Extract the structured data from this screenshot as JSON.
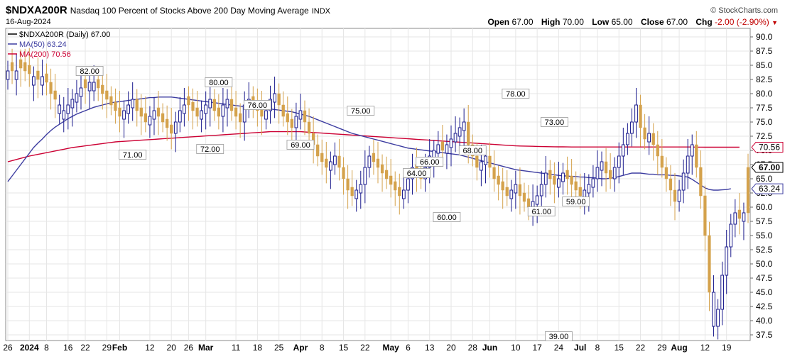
{
  "header": {
    "symbol": "$NDXA200R",
    "description": "Nasdaq 100 Percent of Stocks Above 200 Day Moving Average",
    "exchange": "INDX",
    "date": "16-Aug-2024",
    "source": "© StockCharts.com",
    "open_label": "Open",
    "open": "67.00",
    "high_label": "High",
    "high": "70.00",
    "low_label": "Low",
    "low": "65.00",
    "close_label": "Close",
    "close": "67.00",
    "chg_label": "Chg",
    "chg": "-2.00 (-2.90%)"
  },
  "legend": {
    "price": "$NDXA200R (Daily) 67.00",
    "ma50": "MA(50) 63.24",
    "ma200": "MA(200) 70.56"
  },
  "colors": {
    "up": "#1a1a8c",
    "down": "#d4a24c",
    "ma50": "#3c3ca0",
    "ma200": "#cc0033",
    "grid": "#e6e6e6"
  },
  "chart_data": {
    "type": "candlestick",
    "ylim": [
      36.5,
      91.5
    ],
    "yticks": [
      "90.0",
      "87.5",
      "85.0",
      "82.5",
      "80.0",
      "77.5",
      "75.0",
      "72.5",
      "70.0",
      "67.5",
      "65.0",
      "62.5",
      "60.0",
      "57.5",
      "55.0",
      "52.5",
      "50.0",
      "47.5",
      "45.0",
      "42.5",
      "40.0",
      "37.5"
    ],
    "x_ticks": [
      {
        "label": "26",
        "i": 0
      },
      {
        "label": "2024",
        "i": 5,
        "bold": true
      },
      {
        "label": "8",
        "i": 9
      },
      {
        "label": "16",
        "i": 14
      },
      {
        "label": "22",
        "i": 18
      },
      {
        "label": "29",
        "i": 23
      },
      {
        "label": "Feb",
        "i": 26,
        "bold": true
      },
      {
        "label": "12",
        "i": 33
      },
      {
        "label": "20",
        "i": 38
      },
      {
        "label": "26",
        "i": 42
      },
      {
        "label": "Mar",
        "i": 46,
        "bold": true
      },
      {
        "label": "11",
        "i": 53
      },
      {
        "label": "18",
        "i": 58
      },
      {
        "label": "25",
        "i": 63
      },
      {
        "label": "Apr",
        "i": 68,
        "bold": true
      },
      {
        "label": "8",
        "i": 73
      },
      {
        "label": "15",
        "i": 78
      },
      {
        "label": "22",
        "i": 83
      },
      {
        "label": "May",
        "i": 89,
        "bold": true
      },
      {
        "label": "6",
        "i": 93
      },
      {
        "label": "13",
        "i": 98
      },
      {
        "label": "20",
        "i": 103
      },
      {
        "label": "28",
        "i": 108
      },
      {
        "label": "Jun",
        "i": 112,
        "bold": true
      },
      {
        "label": "10",
        "i": 118
      },
      {
        "label": "17",
        "i": 123
      },
      {
        "label": "24",
        "i": 128
      },
      {
        "label": "Jul",
        "i": 133,
        "bold": true
      },
      {
        "label": "8",
        "i": 137
      },
      {
        "label": "15",
        "i": 142
      },
      {
        "label": "22",
        "i": 147
      },
      {
        "label": "29",
        "i": 152
      },
      {
        "label": "Aug",
        "i": 156,
        "bold": true
      },
      {
        "label": "12",
        "i": 162
      },
      {
        "label": "19",
        "i": 167
      }
    ],
    "candles_close": [
      84,
      84,
      84,
      84.5,
      84,
      83.5,
      83,
      82.5,
      83,
      82,
      80,
      79,
      78,
      77,
      78,
      79,
      80,
      81,
      81,
      82,
      82,
      81,
      80,
      79,
      78,
      77,
      76,
      77,
      78,
      79,
      77,
      76,
      75,
      76,
      77,
      76,
      75,
      74,
      73,
      75,
      77,
      78,
      78,
      77,
      76,
      77,
      78,
      79,
      77,
      76,
      78,
      79,
      77,
      76,
      75,
      78,
      79,
      78,
      77,
      76,
      77,
      79,
      80,
      78,
      76,
      75,
      74,
      76,
      77,
      75,
      73,
      71,
      69,
      68,
      67,
      68,
      69,
      67,
      65,
      63,
      62,
      63,
      64,
      67,
      69,
      68,
      67,
      66,
      65,
      64,
      63,
      62,
      63,
      65,
      67,
      66,
      65,
      67,
      69,
      70,
      71,
      70,
      71,
      72,
      73,
      74,
      75,
      71,
      69,
      67,
      68,
      69,
      67,
      65,
      64,
      63,
      62,
      63,
      64,
      62,
      61,
      60,
      61,
      62,
      64,
      66,
      65,
      64,
      65,
      66,
      65,
      64,
      63,
      62,
      63,
      64,
      65,
      67,
      68,
      66,
      65,
      67,
      69,
      71,
      73,
      75,
      78,
      74,
      72,
      73,
      71,
      69,
      67,
      65,
      63,
      61,
      63,
      66,
      69,
      71,
      67,
      62,
      55,
      45,
      39,
      42,
      48,
      53,
      57,
      59,
      58,
      59,
      67
    ],
    "candles_dir": [
      1,
      0,
      1,
      0,
      0,
      0,
      1,
      0,
      1,
      0,
      0,
      0,
      1,
      1,
      1,
      1,
      1,
      1,
      0,
      1,
      1,
      0,
      0,
      0,
      0,
      0,
      0,
      1,
      1,
      1,
      0,
      0,
      0,
      1,
      1,
      0,
      0,
      0,
      0,
      1,
      1,
      1,
      0,
      0,
      0,
      1,
      1,
      1,
      0,
      0,
      1,
      1,
      0,
      0,
      0,
      1,
      1,
      0,
      0,
      0,
      1,
      1,
      1,
      0,
      0,
      0,
      0,
      1,
      1,
      0,
      0,
      0,
      0,
      0,
      0,
      1,
      1,
      0,
      0,
      0,
      0,
      1,
      1,
      1,
      1,
      0,
      0,
      0,
      0,
      0,
      0,
      0,
      1,
      1,
      1,
      0,
      0,
      1,
      1,
      1,
      1,
      0,
      1,
      1,
      1,
      1,
      1,
      0,
      0,
      0,
      1,
      1,
      0,
      0,
      0,
      0,
      0,
      1,
      1,
      0,
      0,
      0,
      1,
      1,
      1,
      1,
      0,
      0,
      1,
      1,
      0,
      0,
      0,
      0,
      1,
      1,
      1,
      1,
      1,
      0,
      0,
      1,
      1,
      1,
      1,
      1,
      1,
      0,
      0,
      1,
      0,
      0,
      0,
      0,
      0,
      0,
      1,
      1,
      1,
      1,
      0,
      0,
      0,
      0,
      1,
      1,
      1,
      1,
      1,
      1,
      0,
      1,
      0
    ],
    "ma50": [
      64.5,
      65.5,
      66.5,
      67.5,
      68.5,
      69.5,
      70.5,
      71.3,
      72.0,
      72.8,
      73.5,
      74.1,
      74.6,
      75.1,
      75.6,
      76.0,
      76.4,
      76.7,
      77.0,
      77.3,
      77.6,
      77.8,
      78.0,
      78.2,
      78.4,
      78.5,
      78.6,
      78.7,
      78.8,
      78.9,
      79.0,
      79.1,
      79.2,
      79.3,
      79.3,
      79.4,
      79.4,
      79.4,
      79.4,
      79.3,
      79.2,
      79.1,
      79.0,
      78.9,
      78.8,
      78.7,
      78.6,
      78.5,
      78.4,
      78.3,
      78.2,
      78.1,
      78.0,
      77.9,
      77.8,
      77.7,
      77.6,
      77.5,
      77.5,
      77.4,
      77.4,
      77.3,
      77.2,
      77.1,
      77.0,
      76.9,
      76.8,
      76.6,
      76.4,
      76.2,
      76.0,
      75.7,
      75.4,
      75.1,
      74.8,
      74.5,
      74.2,
      73.9,
      73.6,
      73.3,
      73.0,
      72.8,
      72.6,
      72.4,
      72.2,
      72.0,
      71.8,
      71.6,
      71.4,
      71.2,
      71.0,
      70.8,
      70.6,
      70.4,
      70.3,
      70.2,
      70.1,
      70.0,
      69.9,
      69.8,
      69.7,
      69.6,
      69.5,
      69.4,
      69.3,
      69.2,
      69.0,
      68.8,
      68.6,
      68.4,
      68.2,
      68.0,
      67.8,
      67.6,
      67.4,
      67.2,
      67.0,
      66.8,
      66.6,
      66.5,
      66.4,
      66.3,
      66.2,
      66.1,
      66.0,
      65.9,
      65.8,
      65.7,
      65.6,
      65.5,
      65.5,
      65.4,
      65.4,
      65.3,
      65.3,
      65.2,
      65.2,
      65.1,
      65.0,
      65.0,
      65.1,
      65.2,
      65.4,
      65.6,
      65.8,
      66.0,
      66.0,
      66.0,
      65.9,
      65.8,
      65.8,
      65.7,
      65.7,
      65.7,
      65.6,
      65.6,
      65.5,
      65.4,
      65.3,
      64.9,
      64.4,
      63.9,
      63.4,
      63.1,
      63.0,
      63.0,
      63.05,
      63.1,
      63.24
    ],
    "ma200": [
      68.0,
      68.2,
      68.4,
      68.6,
      68.8,
      69.0,
      69.15,
      69.3,
      69.45,
      69.6,
      69.75,
      69.9,
      70.05,
      70.2,
      70.35,
      70.5,
      70.6,
      70.7,
      70.8,
      70.9,
      71.0,
      71.1,
      71.2,
      71.3,
      71.4,
      71.5,
      71.55,
      71.6,
      71.65,
      71.7,
      71.75,
      71.8,
      71.85,
      71.9,
      71.95,
      72.0,
      72.05,
      72.1,
      72.15,
      72.2,
      72.25,
      72.3,
      72.35,
      72.4,
      72.45,
      72.5,
      72.55,
      72.6,
      72.65,
      72.7,
      72.75,
      72.8,
      72.85,
      72.9,
      72.95,
      73.0,
      73.05,
      73.1,
      73.15,
      73.2,
      73.25,
      73.3,
      73.3,
      73.3,
      73.3,
      73.3,
      73.3,
      73.3,
      73.3,
      73.25,
      73.2,
      73.15,
      73.1,
      73.05,
      73.0,
      72.95,
      72.9,
      72.85,
      72.8,
      72.75,
      72.7,
      72.65,
      72.6,
      72.55,
      72.5,
      72.45,
      72.4,
      72.35,
      72.3,
      72.25,
      72.2,
      72.15,
      72.1,
      72.05,
      72.0,
      71.95,
      71.9,
      71.85,
      71.8,
      71.75,
      71.7,
      71.65,
      71.6,
      71.55,
      71.5,
      71.45,
      71.4,
      71.35,
      71.3,
      71.25,
      71.2,
      71.15,
      71.1,
      71.05,
      71.0,
      70.95,
      70.9,
      70.85,
      70.8,
      70.78,
      70.76,
      70.74,
      70.72,
      70.7,
      70.68,
      70.66,
      70.65,
      70.64,
      70.63,
      70.62,
      70.61,
      70.6,
      70.6,
      70.6,
      70.6,
      70.6,
      70.6,
      70.6,
      70.6,
      70.6,
      70.6,
      70.6,
      70.6,
      70.6,
      70.6,
      70.6,
      70.6,
      70.6,
      70.6,
      70.6,
      70.6,
      70.6,
      70.6,
      70.6,
      70.6,
      70.6,
      70.6,
      70.6,
      70.6,
      70.6,
      70.58,
      70.57,
      70.56,
      70.56,
      70.56,
      70.56,
      70.56,
      70.56,
      70.56,
      70.56,
      70.56
    ],
    "annotations": [
      {
        "text": "82.00",
        "i": 19,
        "v": 82,
        "pos": "above"
      },
      {
        "text": "71.00",
        "i": 29,
        "v": 71,
        "pos": "below"
      },
      {
        "text": "72.00",
        "i": 47,
        "v": 72,
        "pos": "below"
      },
      {
        "text": "80.00",
        "i": 49,
        "v": 80,
        "pos": "above"
      },
      {
        "text": "76.00",
        "i": 58,
        "v": 76,
        "pos": "above"
      },
      {
        "text": "69.00",
        "i": 68,
        "v": 69,
        "pos": "above"
      },
      {
        "text": "75.00",
        "i": 82,
        "v": 75,
        "pos": "above"
      },
      {
        "text": "64.00",
        "i": 95,
        "v": 64,
        "pos": "above"
      },
      {
        "text": "66.00",
        "i": 98,
        "v": 66,
        "pos": "above"
      },
      {
        "text": "60.00",
        "i": 102,
        "v": 60,
        "pos": "below"
      },
      {
        "text": "68.00",
        "i": 108,
        "v": 68,
        "pos": "above"
      },
      {
        "text": "78.00",
        "i": 118,
        "v": 78,
        "pos": "above"
      },
      {
        "text": "73.00",
        "i": 127,
        "v": 73,
        "pos": "above"
      },
      {
        "text": "61.00",
        "i": 124,
        "v": 61,
        "pos": "below"
      },
      {
        "text": "59.00",
        "i": 132,
        "v": 59,
        "pos": "above"
      },
      {
        "text": "39.00",
        "i": 128,
        "v": 39,
        "pos": "below"
      }
    ],
    "last_labels": {
      "ma200": "70.56",
      "close": "67.00",
      "ma50": "63.24"
    }
  }
}
